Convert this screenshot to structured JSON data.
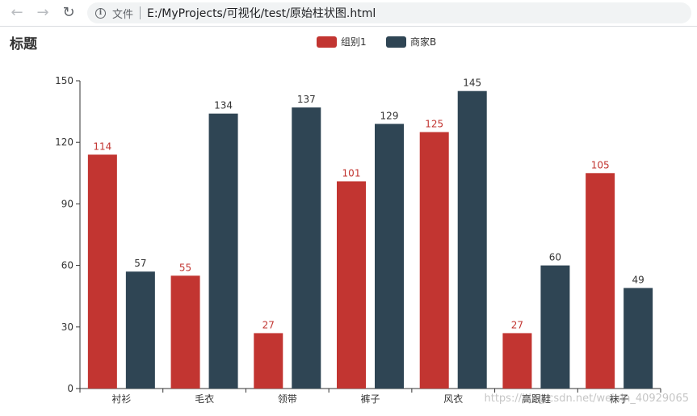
{
  "browser": {
    "file_label": "文件",
    "url": "E:/MyProjects/可视化/test/原始柱状图.html"
  },
  "watermark": "https://blog.csdn.net/weixin_40929065",
  "chart_data": {
    "type": "bar",
    "title": "标题",
    "categories": [
      "衬衫",
      "毛衣",
      "领带",
      "裤子",
      "风衣",
      "高跟鞋",
      "袜子"
    ],
    "series": [
      {
        "name": "组别1",
        "color": "#c23531",
        "values": [
          114,
          55,
          27,
          101,
          125,
          27,
          105
        ]
      },
      {
        "name": "商家B",
        "color": "#2f4554",
        "values": [
          57,
          134,
          137,
          129,
          145,
          60,
          49
        ]
      }
    ],
    "ylim": [
      0,
      150
    ],
    "yticks": [
      0,
      30,
      60,
      90,
      120,
      150
    ],
    "grid": false,
    "legend": "top-center",
    "data_labels": true
  }
}
